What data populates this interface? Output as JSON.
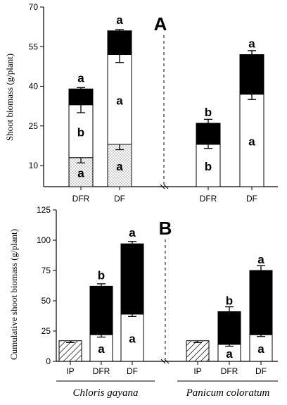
{
  "chart_data": [
    {
      "type": "bar",
      "stacked": true,
      "panel_label": "A",
      "ylabel": "Shoot biomass (g/plant)",
      "ylim": [
        2,
        70
      ],
      "yticks": [
        10,
        25,
        40,
        55,
        70
      ],
      "categories": [
        "DFR",
        "DF",
        "DFR",
        "DF"
      ],
      "segments": [
        {
          "name": "",
          "pattern": "dots",
          "values": [
            13,
            18,
            0,
            0
          ],
          "error": [
            2,
            2,
            0,
            0
          ],
          "letters": [
            "a",
            "a",
            "",
            ""
          ]
        },
        {
          "name": "",
          "pattern": "white",
          "values": [
            20,
            34,
            18,
            37
          ],
          "error": [
            3,
            3,
            1.5,
            2
          ],
          "letters": [
            "b",
            "a",
            "b",
            "a"
          ]
        },
        {
          "name": "",
          "pattern": "black",
          "values": [
            6,
            9,
            8,
            15
          ],
          "error": [
            0.5,
            0.5,
            1.5,
            1.5
          ],
          "letters": [
            "a",
            "a",
            "b",
            "a"
          ]
        }
      ]
    },
    {
      "type": "bar",
      "stacked": true,
      "panel_label": "B",
      "ylabel": "Cumulative shoot biomass (g/plant)",
      "ylim": [
        0,
        125
      ],
      "yticks": [
        0,
        25,
        50,
        75,
        100,
        125
      ],
      "categories": [
        "IP",
        "DFR",
        "DF",
        "IP",
        "DFR",
        "DF"
      ],
      "group_labels": [
        "Chloris gayana",
        "Panicum coloratum"
      ],
      "segments": [
        {
          "name": "",
          "pattern": "hatch",
          "values": [
            17,
            0,
            0,
            17,
            0,
            0
          ],
          "error": [
            1.5,
            0,
            0,
            1.5,
            0,
            0
          ],
          "letters": [
            "",
            "",
            "",
            "",
            "",
            ""
          ]
        },
        {
          "name": "",
          "pattern": "white",
          "values": [
            0,
            22,
            39,
            0,
            14,
            22
          ],
          "error": [
            0,
            2,
            2,
            0,
            1.5,
            1.5
          ],
          "letters": [
            "",
            "a",
            "a",
            "",
            "a",
            "a"
          ]
        },
        {
          "name": "",
          "pattern": "black",
          "values": [
            0,
            40,
            58,
            0,
            27,
            53
          ],
          "error": [
            0,
            2,
            2,
            0,
            4,
            4
          ],
          "letters": [
            "",
            "b",
            "a",
            "",
            "b",
            "a"
          ]
        }
      ]
    }
  ]
}
